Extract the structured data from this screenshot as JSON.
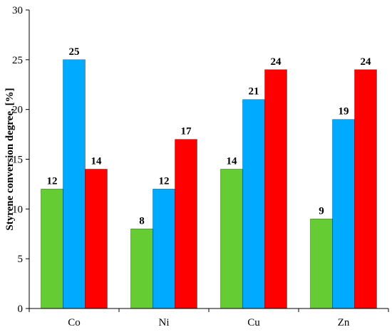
{
  "chart_data": {
    "type": "bar",
    "categories": [
      "Co",
      "Ni",
      "Cu",
      "Zn"
    ],
    "series": [
      {
        "values": [
          12,
          8,
          14,
          9
        ],
        "color": "#66cc33"
      },
      {
        "values": [
          25,
          12,
          21,
          19
        ],
        "color": "#00aaff"
      },
      {
        "values": [
          14,
          17,
          24,
          24
        ],
        "color": "#ff0000"
      }
    ],
    "title": "",
    "xlabel": "",
    "ylabel": "Styrene conversion degree, [%]",
    "ylim": [
      0,
      30
    ],
    "yticks": [
      0,
      5,
      10,
      15,
      20,
      25,
      30
    ],
    "grid": false,
    "legend": "none"
  }
}
